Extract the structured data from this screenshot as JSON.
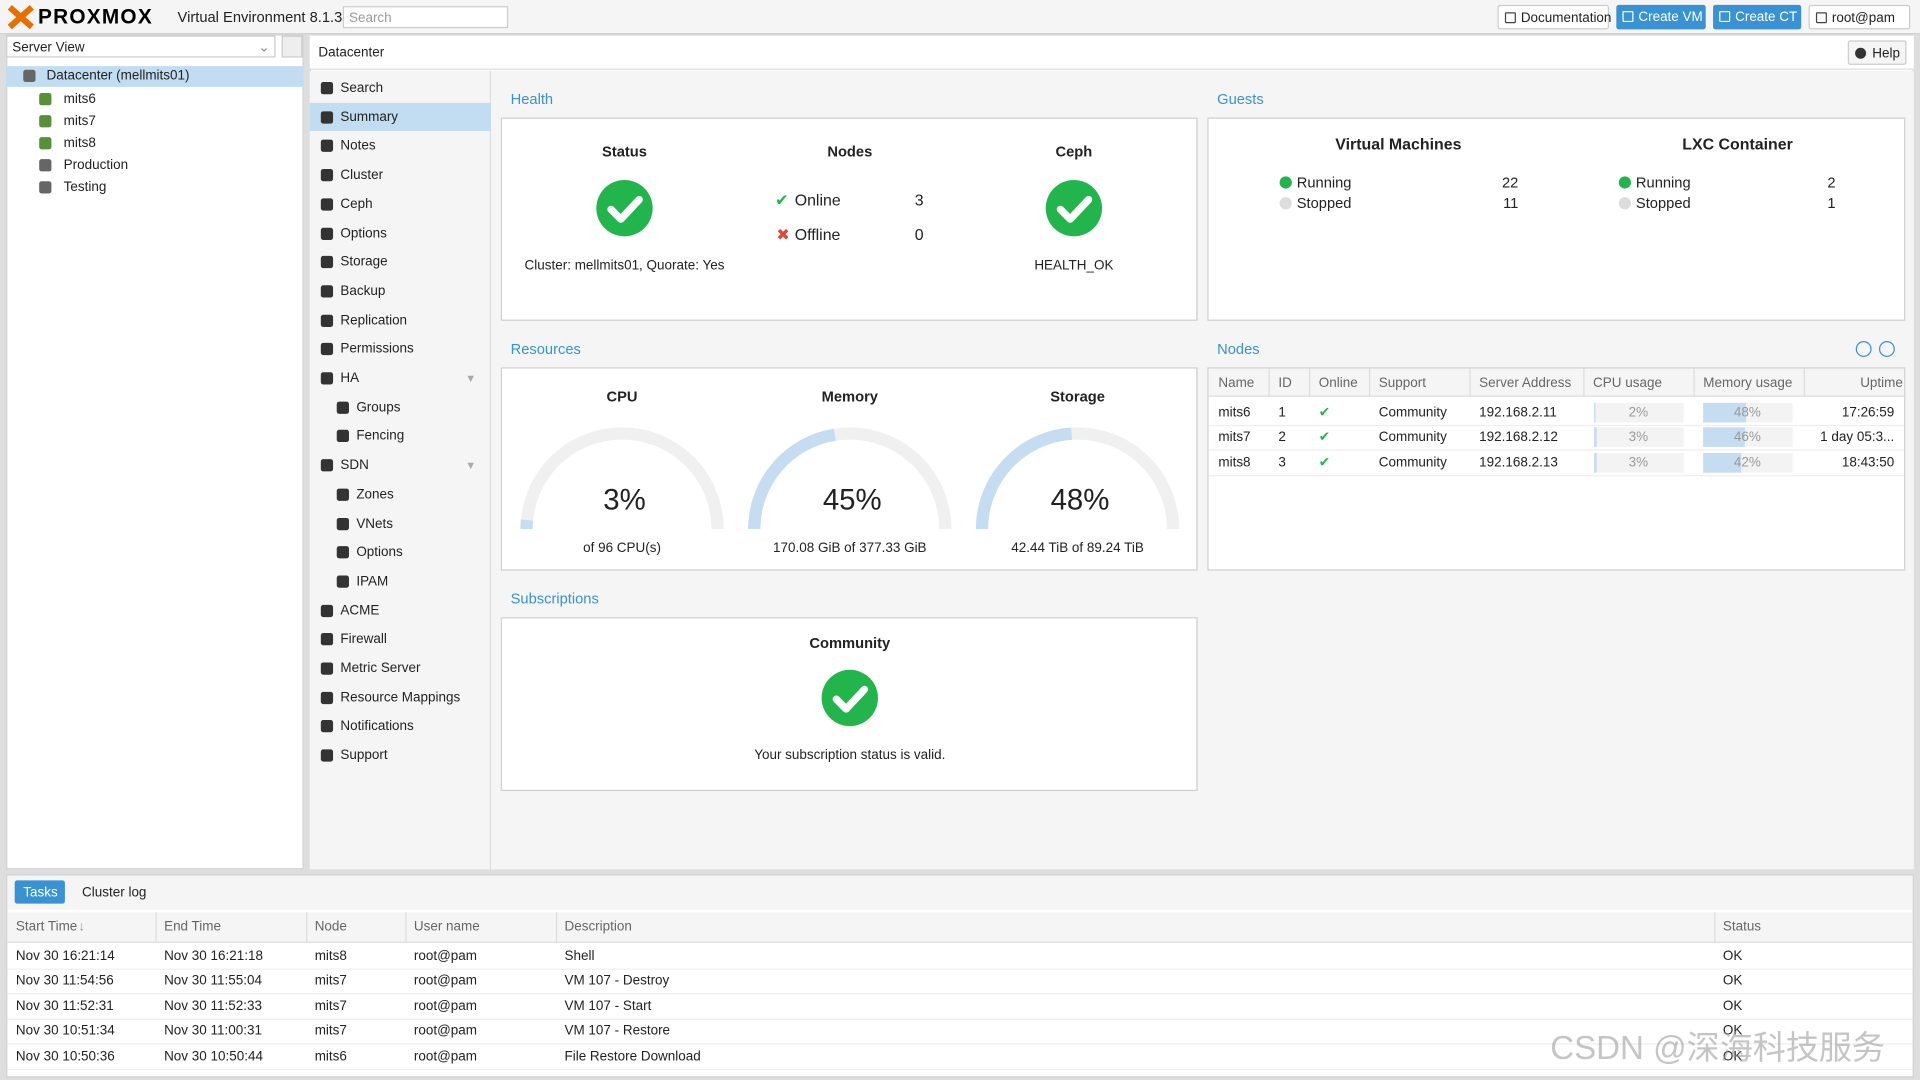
{
  "header": {
    "logo": "PROXMOX",
    "product": "Virtual Environment 8.1.3",
    "search": "Search",
    "buttons": [
      "Documentation",
      "Create VM",
      "Create CT",
      "root@pam"
    ]
  },
  "tree": {
    "view": "Server View",
    "root": "Datacenter (mellmits01)",
    "nodes": [
      "mits6",
      "mits7",
      "mits8"
    ],
    "pools": [
      "Production",
      "Testing"
    ]
  },
  "content": {
    "breadcrumb": "Datacenter",
    "help": "Help"
  },
  "menu": [
    {
      "label": "Search"
    },
    {
      "label": "Summary"
    },
    {
      "label": "Notes"
    },
    {
      "label": "Cluster"
    },
    {
      "label": "Ceph"
    },
    {
      "label": "Options"
    },
    {
      "label": "Storage"
    },
    {
      "label": "Backup"
    },
    {
      "label": "Replication"
    },
    {
      "label": "Permissions"
    },
    {
      "label": "HA",
      "children": [
        "Groups",
        "Fencing"
      ]
    },
    {
      "label": "SDN",
      "children": [
        "Zones",
        "VNets",
        "Options",
        "IPAM"
      ]
    },
    {
      "label": "ACME"
    },
    {
      "label": "Firewall"
    },
    {
      "label": "Metric Server"
    },
    {
      "label": "Resource Mappings"
    },
    {
      "label": "Notifications"
    },
    {
      "label": "Support"
    }
  ],
  "health": {
    "title": "Health",
    "status": {
      "heading": "Status",
      "text": "Cluster: mellmits01, Quorate: Yes"
    },
    "nodes": {
      "heading": "Nodes",
      "online": {
        "label": "Online",
        "count": 3
      },
      "offline": {
        "label": "Offline",
        "count": 0
      }
    },
    "ceph": {
      "heading": "Ceph",
      "text": "HEALTH_OK"
    }
  },
  "guests": {
    "title": "Guests",
    "groups": [
      {
        "heading": "Virtual Machines",
        "running": {
          "label": "Running",
          "count": 22
        },
        "stopped": {
          "label": "Stopped",
          "count": 11
        }
      },
      {
        "heading": "LXC Container",
        "running": {
          "label": "Running",
          "count": 2
        },
        "stopped": {
          "label": "Stopped",
          "count": 1
        }
      }
    ]
  },
  "resources": {
    "title": "Resources",
    "gauges": [
      {
        "heading": "CPU",
        "value": 3,
        "value_label": "3%",
        "detail": "of 96 CPU(s)"
      },
      {
        "heading": "Memory",
        "value": 45,
        "value_label": "45%",
        "detail": "170.08 GiB of 377.33 GiB"
      },
      {
        "heading": "Storage",
        "value": 48,
        "value_label": "48%",
        "detail": "42.44 TiB of 89.24 TiB"
      }
    ]
  },
  "nodes": {
    "title": "Nodes",
    "columns": [
      "Name",
      "ID",
      "Online",
      "Support",
      "Server Address",
      "CPU usage",
      "Memory usage",
      "Uptime"
    ],
    "rows": [
      {
        "name": "mits6",
        "id": 1,
        "support": "Community",
        "address": "192.168.2.11",
        "cpu": 2,
        "cpu_label": "2%",
        "memory": 48,
        "memory_label": "48%",
        "uptime": "17:26:59"
      },
      {
        "name": "mits7",
        "id": 2,
        "support": "Community",
        "address": "192.168.2.12",
        "cpu": 3,
        "cpu_label": "3%",
        "memory": 46,
        "memory_label": "46%",
        "uptime": "1 day 05:3..."
      },
      {
        "name": "mits8",
        "id": 3,
        "support": "Community",
        "address": "192.168.2.13",
        "cpu": 3,
        "cpu_label": "3%",
        "memory": 42,
        "memory_label": "42%",
        "uptime": "18:43:50"
      }
    ]
  },
  "subscriptions": {
    "title": "Subscriptions",
    "heading": "Community",
    "text": "Your subscription status is valid."
  },
  "tasks": {
    "tabs": [
      "Tasks",
      "Cluster log"
    ],
    "columns": [
      "Start Time",
      "End Time",
      "Node",
      "User name",
      "Description",
      "Status"
    ],
    "rows": [
      [
        "Nov 30 16:21:14",
        "Nov 30 16:21:18",
        "mits8",
        "root@pam",
        "Shell",
        "OK"
      ],
      [
        "Nov 30 11:54:56",
        "Nov 30 11:55:04",
        "mits7",
        "root@pam",
        "VM 107 - Destroy",
        "OK"
      ],
      [
        "Nov 30 11:52:31",
        "Nov 30 11:52:33",
        "mits7",
        "root@pam",
        "VM 107 - Start",
        "OK"
      ],
      [
        "Nov 30 10:51:34",
        "Nov 30 11:00:31",
        "mits7",
        "root@pam",
        "VM 107 - Restore",
        "OK"
      ],
      [
        "Nov 30 10:50:36",
        "Nov 30 10:50:44",
        "mits6",
        "root@pam",
        "File Restore Download",
        "OK"
      ]
    ]
  },
  "watermark": "CSDN @深海科技服务"
}
